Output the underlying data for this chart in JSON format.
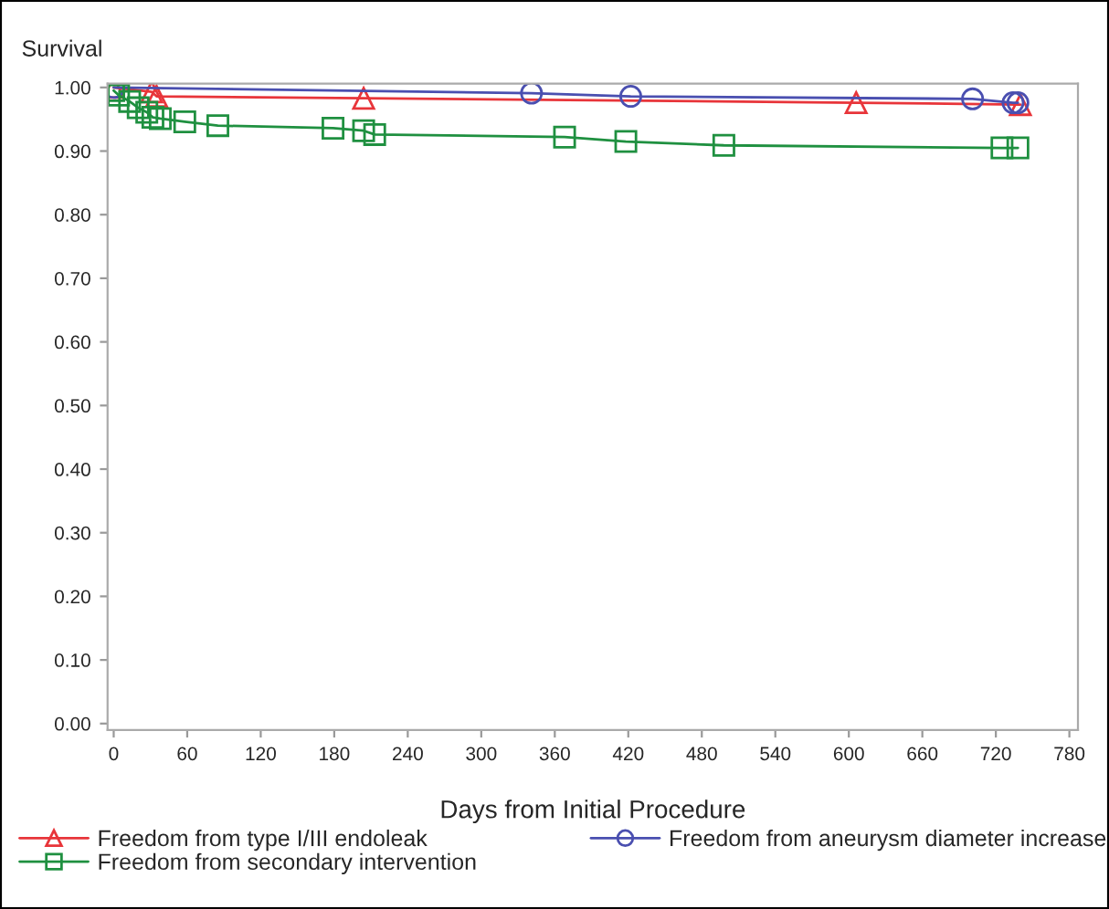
{
  "chart_data": {
    "type": "line",
    "xlabel": "Days from Initial Procedure",
    "ylabel": "Survival",
    "series": [
      {
        "name": "Freedom from type I/III endoleak",
        "color": "#e8353a",
        "marker": "triangle",
        "x": [
          0,
          31,
          35,
          204,
          606,
          740
        ],
        "values": [
          1.0,
          0.993,
          0.986,
          0.983,
          0.976,
          0.973
        ]
      },
      {
        "name": "Freedom from aneurysm diameter increase",
        "color": "#4a4fb0",
        "marker": "circle",
        "x": [
          0,
          341,
          422,
          701,
          734,
          738
        ],
        "values": [
          1.0,
          0.991,
          0.986,
          0.982,
          0.976,
          0.976
        ]
      },
      {
        "name": "Freedom from secondary intervention",
        "color": "#1f9040",
        "marker": "square",
        "x": [
          0,
          4,
          13,
          20,
          27,
          32,
          38,
          58,
          85,
          179,
          204,
          213,
          368,
          418,
          498,
          725,
          738
        ],
        "values": [
          0.995,
          0.988,
          0.978,
          0.968,
          0.961,
          0.953,
          0.951,
          0.946,
          0.94,
          0.936,
          0.932,
          0.926,
          0.922,
          0.915,
          0.909,
          0.905,
          0.905
        ]
      }
    ],
    "xlim": [
      -5,
      787
    ],
    "ylim": [
      -0.01,
      1.006
    ],
    "xticks": [
      0,
      60,
      120,
      180,
      240,
      300,
      360,
      420,
      480,
      540,
      600,
      660,
      720,
      780
    ],
    "yticks": [
      {
        "value": 0,
        "label": "0.00"
      },
      {
        "value": 0.1,
        "label": "0.10"
      },
      {
        "value": 0.2,
        "label": "0.20"
      },
      {
        "value": 0.3,
        "label": "0.30"
      },
      {
        "value": 0.4,
        "label": "0.40"
      },
      {
        "value": 0.5,
        "label": "0.50"
      },
      {
        "value": 0.6,
        "label": "0.60"
      },
      {
        "value": 0.7,
        "label": "0.70"
      },
      {
        "value": 0.8,
        "label": "0.80"
      },
      {
        "value": 0.9,
        "label": "0.90"
      },
      {
        "value": 1.0,
        "label": "1.00"
      }
    ],
    "grid": false,
    "legend": "bottom"
  }
}
